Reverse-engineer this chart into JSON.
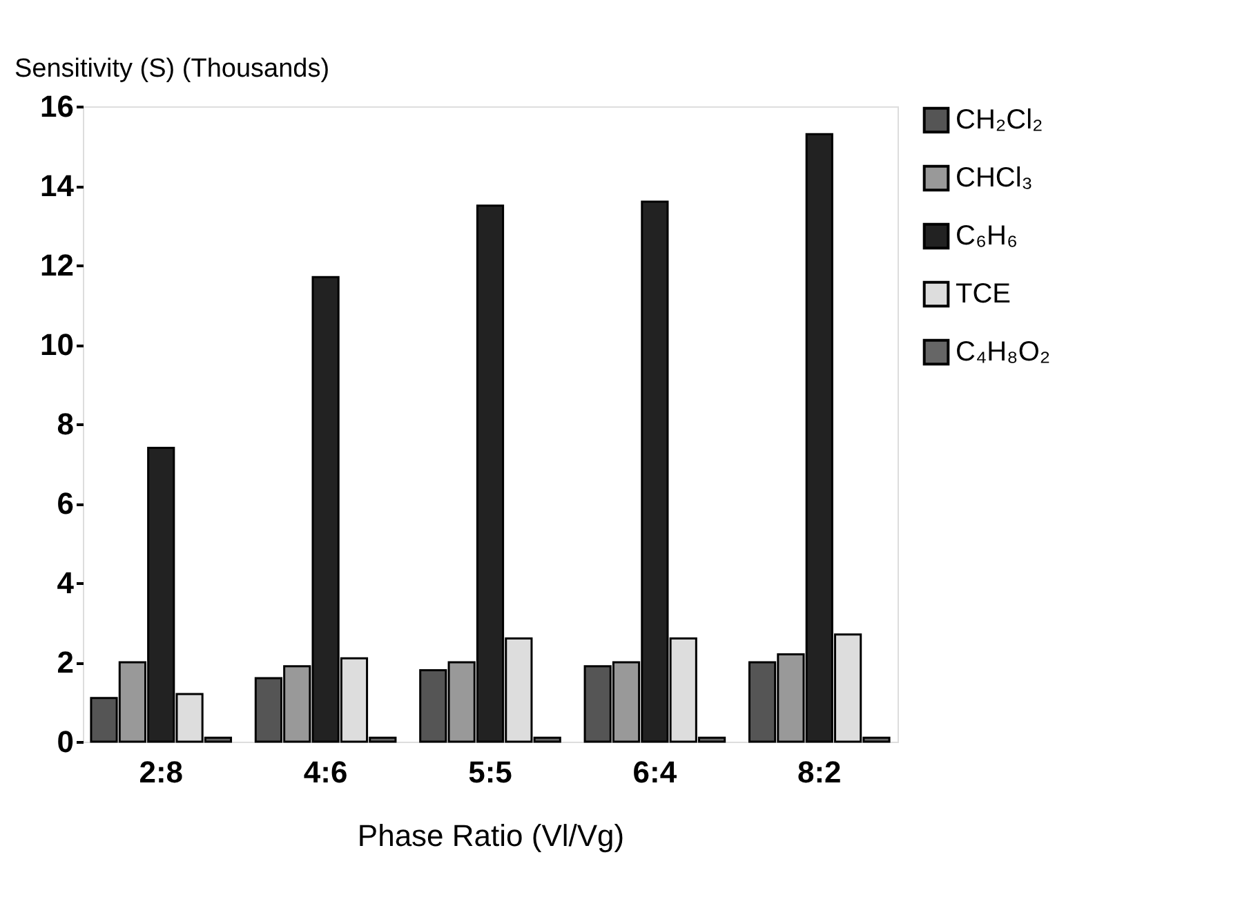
{
  "chart_data": {
    "type": "bar",
    "ylabel": "Sensitivity (S) (Thousands)",
    "xlabel": "Phase Ratio (Vl/Vg)",
    "categories": [
      "2:8",
      "4:6",
      "5:5",
      "6:4",
      "8:2"
    ],
    "series": [
      {
        "name": "CH₂Cl₂",
        "color": "#555555",
        "values": [
          1.1,
          1.6,
          1.8,
          1.9,
          2.0
        ]
      },
      {
        "name": "CHCl₃",
        "color": "#999999",
        "values": [
          2.0,
          1.9,
          2.0,
          2.0,
          2.2
        ]
      },
      {
        "name": "C₆H₆",
        "color": "#222222",
        "values": [
          7.4,
          11.7,
          13.5,
          13.6,
          15.3
        ]
      },
      {
        "name": "TCE",
        "color": "#dddddd",
        "values": [
          1.2,
          2.1,
          2.6,
          2.6,
          2.7
        ]
      },
      {
        "name": "C₄H₈O₂",
        "color": "#666666",
        "values": [
          0.1,
          0.1,
          0.1,
          0.1,
          0.1
        ]
      }
    ],
    "ylim": [
      0,
      16
    ],
    "yticks": [
      0,
      2,
      4,
      6,
      8,
      10,
      12,
      14,
      16
    ],
    "grid": false,
    "legend": "right"
  }
}
